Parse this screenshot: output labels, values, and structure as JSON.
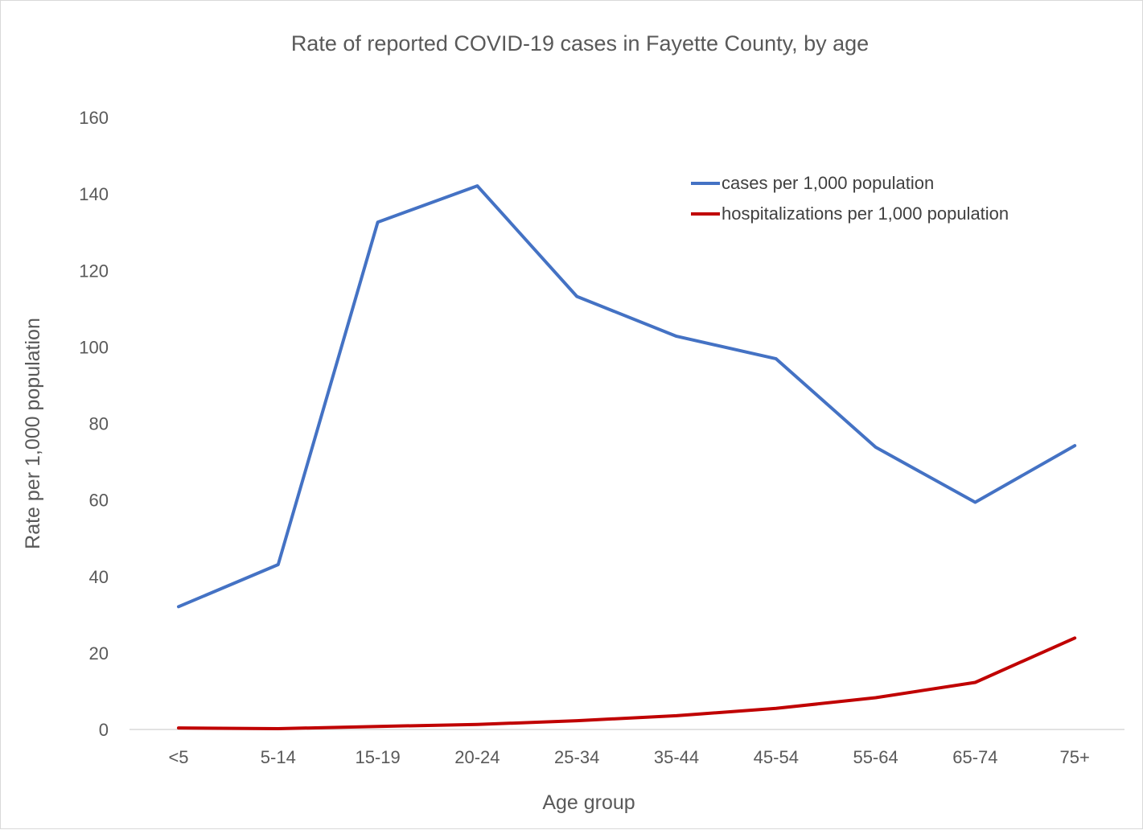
{
  "chart_data": {
    "type": "line",
    "title": "Rate of reported COVID-19 cases in Fayette County, by age",
    "xlabel": "Age group",
    "ylabel": "Rate per 1,000 population",
    "categories": [
      "<5",
      "5-14",
      "15-19",
      "20-24",
      "25-34",
      "35-44",
      "45-54",
      "55-64",
      "65-74",
      "75+"
    ],
    "ylim": [
      0,
      160
    ],
    "yticks": [
      "0",
      "20",
      "40",
      "60",
      "80",
      "100",
      "120",
      "140",
      "160"
    ],
    "grid": false,
    "legend_position": "top-right",
    "series": [
      {
        "name": "cases per 1,000 population",
        "color": "#4472c4",
        "values": [
          32.1,
          43.1,
          132.6,
          142.1,
          113.2,
          102.8,
          96.9,
          73.8,
          59.4,
          74.2
        ]
      },
      {
        "name": "hospitalizations per 1,000 population",
        "color": "#c00000",
        "values": [
          0.4,
          0.2,
          0.8,
          1.3,
          2.3,
          3.6,
          5.5,
          8.3,
          12.3,
          23.9
        ]
      }
    ]
  },
  "colors": {
    "axis_line": "#d9d9d9",
    "text": "#595959"
  }
}
